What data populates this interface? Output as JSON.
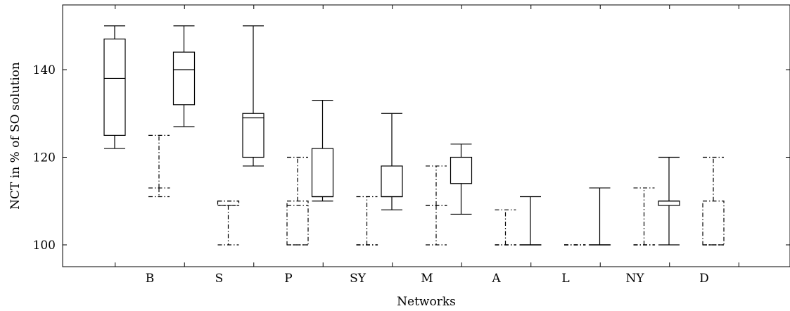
{
  "chart_data": {
    "type": "boxplot",
    "title": "",
    "xlabel": "Networks",
    "ylabel": "NCT in % of SO solution",
    "ylim": [
      95,
      153
    ],
    "yticks": [
      100,
      120,
      140
    ],
    "categories": [
      "B",
      "S",
      "P",
      "SY",
      "M",
      "A",
      "L",
      "NY",
      "D"
    ],
    "grid": false,
    "series": [
      {
        "line_style": "solid",
        "boxes": [
          {
            "min": 122,
            "q1": 125,
            "median": 138,
            "q3": 147,
            "max": 150
          },
          {
            "min": 127,
            "q1": 132,
            "median": 140,
            "q3": 144,
            "max": 150
          },
          {
            "min": 118,
            "q1": 120,
            "median": 129,
            "q3": 130,
            "max": 150
          },
          {
            "min": 110,
            "q1": 111,
            "median": 111,
            "q3": 122,
            "max": 133
          },
          {
            "min": 108,
            "q1": 111,
            "median": 111,
            "q3": 118,
            "max": 130
          },
          {
            "min": 107,
            "q1": 114,
            "median": 114,
            "q3": 120,
            "max": 123
          },
          {
            "min": 100,
            "q1": 100,
            "median": 100,
            "q3": 100,
            "max": 111
          },
          {
            "min": 100,
            "q1": 100,
            "median": 100,
            "q3": 100,
            "max": 113
          },
          {
            "min": 100,
            "q1": 109,
            "median": 110,
            "q3": 110,
            "max": 120
          }
        ]
      },
      {
        "line_style": "dash-dot",
        "boxes": [
          {
            "min": 111,
            "q1": 113,
            "median": 113,
            "q3": 113,
            "max": 125
          },
          {
            "min": 100,
            "q1": 109,
            "median": 109,
            "q3": 110,
            "max": 110
          },
          {
            "min": 100,
            "q1": 100,
            "median": 109,
            "q3": 110,
            "max": 120
          },
          {
            "min": 100,
            "q1": 100,
            "median": 100,
            "q3": 100,
            "max": 111
          },
          {
            "min": 100,
            "q1": 109,
            "median": 109,
            "q3": 109,
            "max": 118
          },
          {
            "min": 100,
            "q1": 100,
            "median": 100,
            "q3": 100,
            "max": 108
          },
          {
            "min": 100,
            "q1": 100,
            "median": 100,
            "q3": 100,
            "max": 100
          },
          {
            "min": 100,
            "q1": 100,
            "median": 100,
            "q3": 100,
            "max": 113
          },
          {
            "min": 100,
            "q1": 100,
            "median": 100,
            "q3": 110,
            "max": 120
          }
        ]
      }
    ]
  }
}
